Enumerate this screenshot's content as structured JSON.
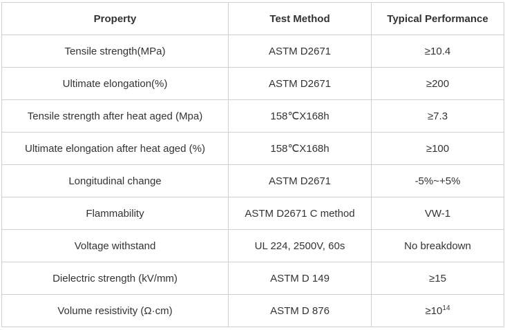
{
  "table": {
    "header": [
      "Property",
      "Test Method",
      "Typical Performance"
    ],
    "rows": [
      [
        "Tensile strength(MPa)",
        "ASTM D2671",
        "≥10.4"
      ],
      [
        "Ultimate elongation(%)",
        "ASTM D2671",
        "≥200"
      ],
      [
        "Tensile strength after heat aged (Mpa)",
        "158℃X168h",
        "≥7.3"
      ],
      [
        "Ultimate elongation after heat aged (%)",
        "158℃X168h",
        "≥100"
      ],
      [
        "Longitudinal change",
        "ASTM D2671",
        "-5%~+5%"
      ],
      [
        "Flammability",
        "ASTM D2671 C method",
        "VW-1"
      ],
      [
        "Voltage withstand",
        "UL 224, 2500V, 60s",
        "No breakdown"
      ],
      [
        "Dielectric strength (kV/mm)",
        "ASTM D 149",
        "≥15"
      ],
      [
        "Volume resistivity (Ω·cm)",
        "ASTM D 876",
        {
          "text": "≥10",
          "sup": "14"
        }
      ]
    ]
  }
}
